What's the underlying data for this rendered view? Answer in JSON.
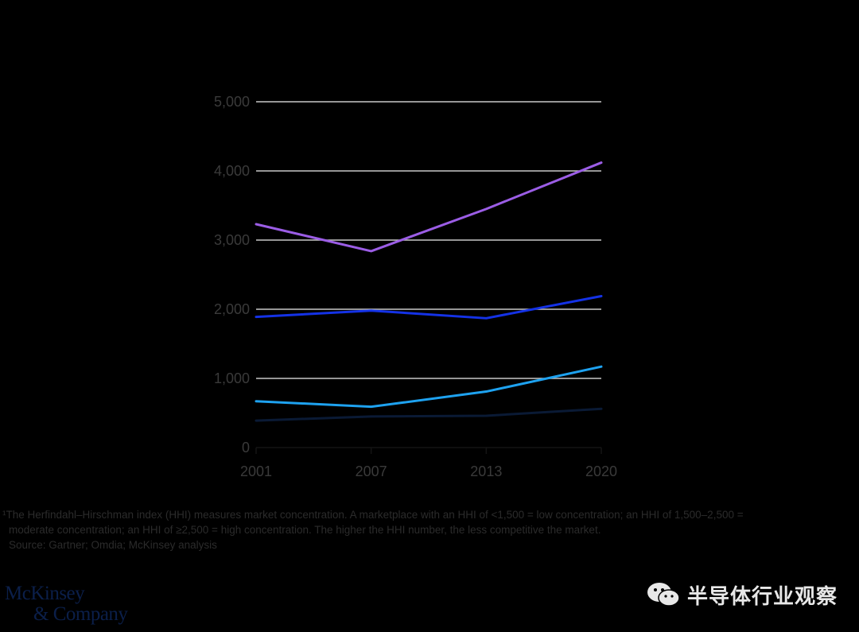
{
  "chart_data": {
    "type": "line",
    "x": [
      "2001",
      "2007",
      "2013",
      "2020"
    ],
    "ylim": [
      0,
      5000
    ],
    "yticks": [
      "0",
      "1,000",
      "2,000",
      "3,000",
      "4,000",
      "5,000"
    ],
    "grid": true,
    "series": [
      {
        "values": [
          3230,
          2840,
          3450,
          4120
        ],
        "color": "#9b5de5"
      },
      {
        "values": [
          1890,
          1980,
          1870,
          2190
        ],
        "color": "#1432e6"
      },
      {
        "values": [
          670,
          590,
          810,
          1170
        ],
        "color": "#1ea2f0"
      },
      {
        "values": [
          390,
          450,
          460,
          560
        ],
        "color": "#0a1a35"
      }
    ]
  },
  "footnote": {
    "line1": "¹The Herfindahl–Hirschman index (HHI) measures market concentration. A marketplace with an HHI of <1,500 = low concentration; an HHI of 1,500–2,500 =",
    "line2": "moderate concentration; an HHI of ≥2,500 = high concentration. The higher the HHI number, the less competitive the market.",
    "source": "Source: Gartner; Omdia; McKinsey analysis"
  },
  "logo": {
    "line1": "McKinsey",
    "line2": "& Company"
  },
  "watermark": {
    "text": "半导体行业观察",
    "icon": "wechat-icon"
  }
}
